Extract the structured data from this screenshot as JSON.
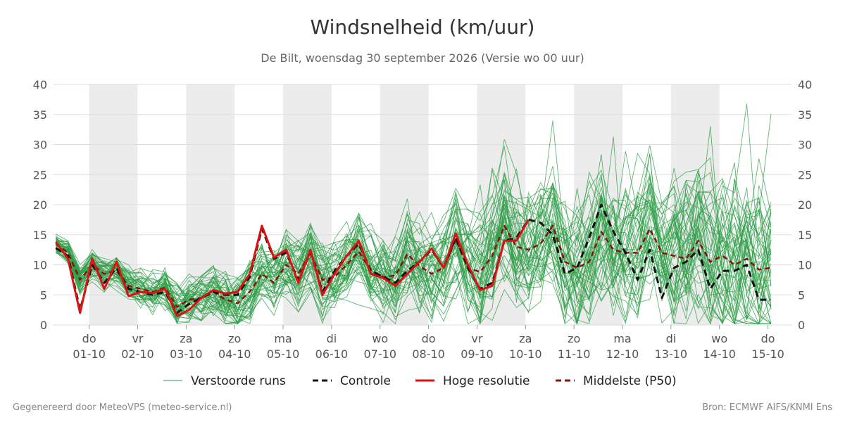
{
  "header": {
    "title": "Windsnelheid (km/uur)",
    "subtitle": "De Bilt, woensdag 30 september 2026 (Versie wo 00 uur)"
  },
  "footer": {
    "left": "Gegenereerd door MeteoVPS (meteo-service.nl)",
    "right": "Bron: ECMWF AIFS/KNMI Ens"
  },
  "colors": {
    "ensemble": "#2e9e47",
    "control": "#111111",
    "hires": "#dd1111",
    "median": "#8b1010",
    "band": "#ececec",
    "grid": "#dddddd"
  },
  "chart_data": {
    "type": "line",
    "ylim": [
      0,
      40
    ],
    "yticks": [
      0,
      5,
      10,
      15,
      20,
      25,
      30,
      35,
      40
    ],
    "x_start": "2026-09-30 06:00",
    "x_end": "2026-10-15 12:00",
    "time_step_hours": 6,
    "day_ticks": [
      {
        "day": "do",
        "date": "01-10"
      },
      {
        "day": "vr",
        "date": "02-10"
      },
      {
        "day": "za",
        "date": "03-10"
      },
      {
        "day": "zo",
        "date": "04-10"
      },
      {
        "day": "ma",
        "date": "05-10"
      },
      {
        "day": "di",
        "date": "06-10"
      },
      {
        "day": "wo",
        "date": "07-10"
      },
      {
        "day": "do",
        "date": "08-10"
      },
      {
        "day": "vr",
        "date": "09-10"
      },
      {
        "day": "za",
        "date": "10-10"
      },
      {
        "day": "zo",
        "date": "11-10"
      },
      {
        "day": "ma",
        "date": "12-10"
      },
      {
        "day": "di",
        "date": "13-10"
      },
      {
        "day": "wo",
        "date": "14-10"
      },
      {
        "day": "do",
        "date": "15-10"
      }
    ],
    "shaded_days": [
      "01-10",
      "03-10",
      "05-10",
      "07-10",
      "09-10",
      "11-10",
      "13-10"
    ],
    "legend": [
      {
        "key": "ensemble",
        "label": "Verstoorde runs",
        "style": "thin"
      },
      {
        "key": "control",
        "label": "Controle",
        "style": "dashed"
      },
      {
        "key": "hires",
        "label": "Hoge resolutie",
        "style": "solid"
      },
      {
        "key": "median",
        "label": "Middelste (P50)",
        "style": "dashed"
      }
    ],
    "series": [
      {
        "key": "hires",
        "name": "Hoge resolutie",
        "values": [
          13.8,
          11,
          2,
          11,
          6,
          10.5,
          4.8,
          5.5,
          5.3,
          6,
          1.5,
          2.5,
          4.5,
          5.8,
          5.2,
          5.5,
          8.5,
          16.5,
          11.2,
          12.5,
          7,
          12.5,
          5,
          8.5,
          11.5,
          14,
          8.5,
          7.8,
          6.5,
          8.5,
          10.5,
          12.7,
          9.5,
          15.2,
          10,
          5.8,
          6.5,
          14,
          14,
          17.5
        ]
      },
      {
        "key": "control",
        "name": "Controle",
        "values": [
          12.8,
          11.5,
          2.5,
          10,
          7,
          9.5,
          6,
          5.5,
          5,
          5.5,
          2,
          3.5,
          4.5,
          5.5,
          5,
          5,
          8,
          16,
          11,
          12,
          7.5,
          12,
          5.5,
          9,
          11.5,
          13.5,
          9,
          8,
          7,
          9,
          10.5,
          12.5,
          9.5,
          14.5,
          9.5,
          6,
          7,
          14,
          14.5,
          17.5,
          17,
          15,
          8.5,
          9.5,
          14.5,
          20,
          15.5,
          12,
          7.5,
          12.5,
          4.5,
          9.5,
          10.5,
          12.5,
          6,
          9,
          9,
          10,
          4.2,
          4.2
        ]
      },
      {
        "key": "median",
        "name": "Middelste (P50)",
        "values": [
          13.5,
          12,
          7.5,
          10,
          8.5,
          9,
          6.5,
          6,
          5.5,
          6.2,
          3,
          4.2,
          4.5,
          5.5,
          4.2,
          3.6,
          5.5,
          8.5,
          7,
          10,
          8.5,
          12,
          7.5,
          8,
          10,
          12.2,
          9,
          8,
          8.2,
          11.8,
          9.8,
          8.5,
          9.5,
          14.2,
          9.5,
          8.8,
          11.5,
          16.5,
          13,
          12.5,
          13.5,
          16.5,
          10.5,
          9.5,
          10.5,
          15.5,
          12.5,
          12,
          12,
          16,
          12,
          11.5,
          11,
          14,
          10.5,
          11.5,
          10,
          11,
          9.2,
          9.5
        ]
      }
    ],
    "ensemble_members": 50
  }
}
